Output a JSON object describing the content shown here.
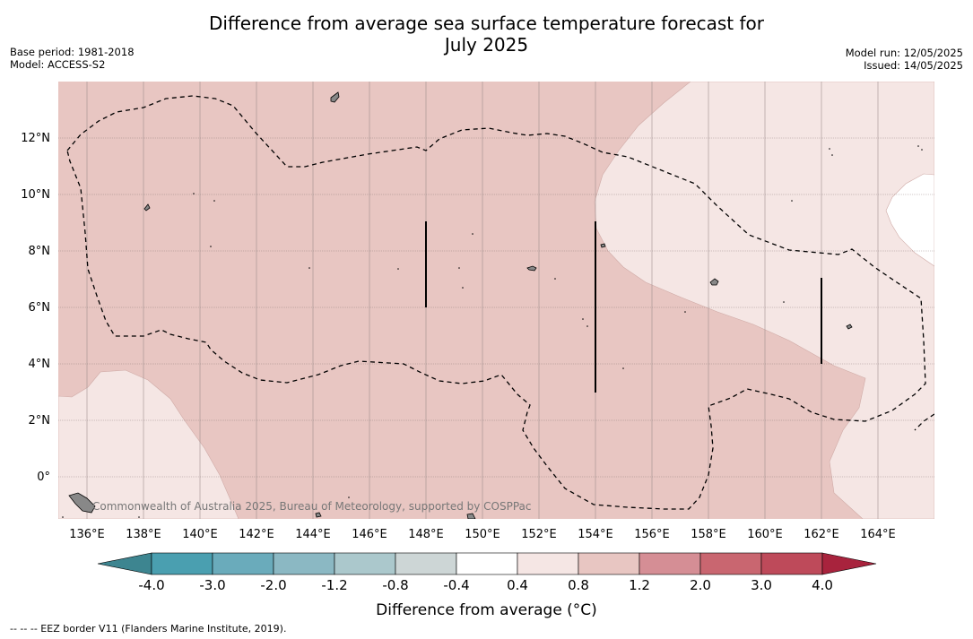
{
  "header": {
    "title_line1": "Difference from average sea surface temperature forecast for",
    "title_line2": "July 2025",
    "base_period": "Base period: 1981-2018",
    "model": "Model: ACCESS-S2",
    "model_run": "Model run: 12/05/2025",
    "issued": "Issued: 14/05/2025"
  },
  "map": {
    "x_ticks": [
      "136°E",
      "138°E",
      "140°E",
      "142°E",
      "144°E",
      "146°E",
      "148°E",
      "150°E",
      "152°E",
      "154°E",
      "156°E",
      "158°E",
      "160°E",
      "162°E",
      "164°E"
    ],
    "y_ticks": [
      "12°N",
      "10°N",
      "8°N",
      "6°N",
      "4°N",
      "2°N",
      "0°"
    ],
    "watermark": "Commonwealth of Australia 2025, Bureau of Meteorology, supported by COSPPac",
    "colors": {
      "anomaly_0p8_1p2": "#e8c6c2",
      "anomaly_0p4_0p8": "#f5e6e4",
      "open_ocean_near_avg": "#ffffff",
      "land": "#888888"
    }
  },
  "colorbar": {
    "labels": [
      "-4.0",
      "-3.0",
      "-2.0",
      "-1.2",
      "-0.8",
      "-0.4",
      "0.4",
      "0.8",
      "1.2",
      "2.0",
      "3.0",
      "4.0"
    ],
    "colors": [
      "#4a9fb0",
      "#6aabbb",
      "#8bb8c3",
      "#abc8cc",
      "#cdd6d6",
      "#ffffff",
      "#f5e6e4",
      "#e8c6c2",
      "#d58e95",
      "#c96670",
      "#be4a5a"
    ],
    "extend_low_color": "#3d8590",
    "extend_high_color": "#a8233d",
    "label": "Difference from average (°C)"
  },
  "footnote": "--  --  -- EEZ border V11 (Flanders Marine Institute, 2019)."
}
